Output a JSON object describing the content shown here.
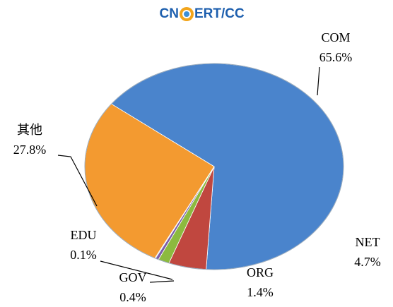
{
  "logo": {
    "left": "CN",
    "right": "ERT/CC"
  },
  "chart_data": {
    "type": "pie",
    "categories": [
      "COM",
      "NET",
      "ORG",
      "GOV",
      "EDU",
      "其他"
    ],
    "values": [
      65.6,
      4.7,
      1.4,
      0.4,
      0.1,
      27.8
    ],
    "value_labels": [
      "65.6%",
      "4.7%",
      "1.4%",
      "0.4%",
      "0.1%",
      "27.8%"
    ],
    "colors": [
      "#4a84cc",
      "#c0473f",
      "#8cba3f",
      "#7b5ea8",
      "#4bacc6",
      "#f39a30"
    ]
  }
}
